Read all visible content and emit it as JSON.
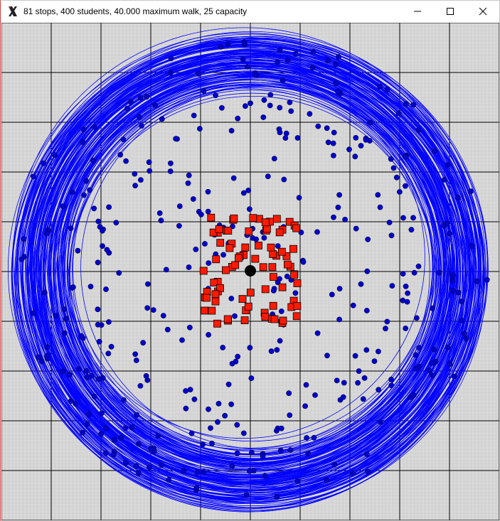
{
  "window": {
    "title": "81 stops, 400 students, 40.000 maximum walk, 25 capacity",
    "app_icon": "x-logo-icon",
    "controls": [
      "minimize-icon",
      "maximize-icon",
      "close-icon"
    ]
  },
  "scene": {
    "stops": 81,
    "students": 400,
    "maximum_walk": 40.0,
    "capacity": 25,
    "colors": {
      "background": "#d8d8d8",
      "fine_grid": "#bdbdbd",
      "major_grid": "#000000",
      "student": "#0000cc",
      "walk_circle": "#0000ff",
      "stop": "#ff1a00",
      "school": "#000000"
    }
  }
}
